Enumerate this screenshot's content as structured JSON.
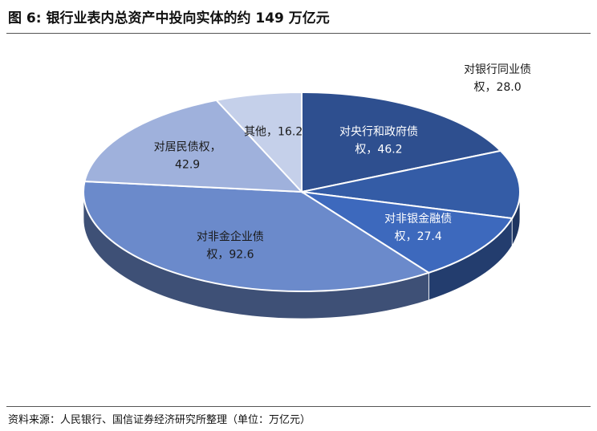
{
  "figure": {
    "title": "图 6:  银行业表内总资产中投向实体的约 149 万亿元",
    "source": "资料来源：人民银行、国信证券经济研究所整理（单位：万亿元）"
  },
  "chart_data": {
    "type": "pie",
    "style": "3d",
    "title": "",
    "unit": "万亿元",
    "slices": [
      {
        "name": "对央行和政府债权",
        "value": 46.2,
        "label_lines": [
          "对央行和政府债",
          "权，46.2"
        ],
        "color": "#2e4f8f",
        "label_color": "#ffffff"
      },
      {
        "name": "对银行同业债权",
        "value": 28.0,
        "label_lines": [
          "对银行同业债",
          "权，28.0"
        ],
        "color": "#345ca6",
        "label_color": "#ffffff"
      },
      {
        "name": "对非银金融债权",
        "value": 27.4,
        "label_lines": [
          "对非银金融债",
          "权，27.4"
        ],
        "color": "#3d69bd",
        "label_color": "#ffffff"
      },
      {
        "name": "对非金企业债权",
        "value": 92.6,
        "label_lines": [
          "对非金企业债",
          "权，92.6"
        ],
        "color": "#6b8acb",
        "label_color": "#1a1a1a"
      },
      {
        "name": "对居民债权",
        "value": 42.9,
        "label_lines": [
          "对居民债权，",
          "42.9"
        ],
        "color": "#9fb1dc",
        "label_color": "#1a1a1a"
      },
      {
        "name": "其他",
        "value": 16.2,
        "label_lines": [
          "其他，16.2"
        ],
        "color": "#c5d0ea",
        "label_color": "#1a1a1a"
      }
    ]
  }
}
